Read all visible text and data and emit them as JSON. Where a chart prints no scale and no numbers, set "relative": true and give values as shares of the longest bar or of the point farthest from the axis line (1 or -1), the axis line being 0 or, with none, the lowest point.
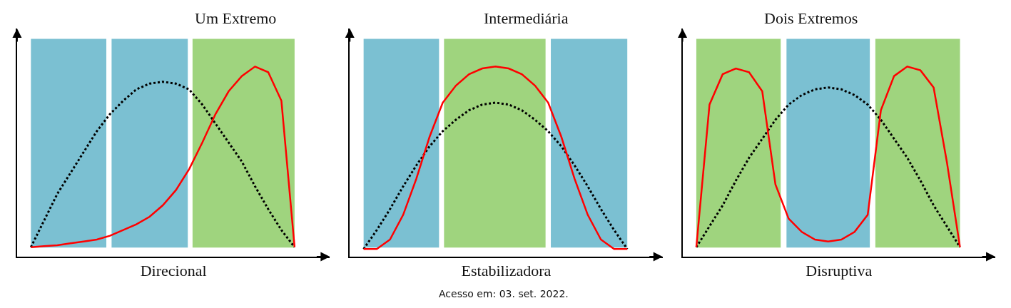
{
  "chart_data": [
    {
      "type": "line",
      "title": "Um Extremo",
      "xlabel": "Direcional",
      "relative": true,
      "categories": [
        null,
        null,
        null,
        null,
        null,
        null,
        null,
        null,
        null,
        null,
        null,
        null,
        null,
        null,
        null,
        null,
        null,
        null,
        null,
        null,
        null
      ],
      "series": [
        {
          "color": "#000000",
          "line_style": "dotted",
          "values": [
            0.05,
            0.19,
            0.33,
            0.44,
            0.55,
            0.66,
            0.75,
            0.82,
            0.88,
            0.91,
            0.92,
            0.91,
            0.88,
            0.8,
            0.7,
            0.6,
            0.5,
            0.37,
            0.25,
            0.14,
            0.05
          ]
        },
        {
          "color": "#ff0000",
          "line_style": "solid",
          "values": [
            0.05,
            0.055,
            0.06,
            0.07,
            0.08,
            0.09,
            0.11,
            0.14,
            0.17,
            0.21,
            0.27,
            0.35,
            0.46,
            0.6,
            0.75,
            0.87,
            0.95,
            1.0,
            0.97,
            0.82,
            0.05
          ]
        }
      ]
    },
    {
      "type": "line",
      "title": "Intermediária",
      "xlabel": "Estabilizadora",
      "relative": true,
      "categories": [
        null,
        null,
        null,
        null,
        null,
        null,
        null,
        null,
        null,
        null,
        null,
        null,
        null,
        null,
        null,
        null,
        null,
        null,
        null,
        null,
        null
      ],
      "annotations": [
        "Acesso em: 03. set. 2022."
      ],
      "series": [
        {
          "color": "#000000",
          "line_style": "dotted",
          "values": [
            0.04,
            0.14,
            0.25,
            0.37,
            0.48,
            0.58,
            0.66,
            0.72,
            0.77,
            0.8,
            0.81,
            0.8,
            0.77,
            0.72,
            0.66,
            0.58,
            0.48,
            0.37,
            0.25,
            0.14,
            0.04
          ]
        },
        {
          "color": "#ff0000",
          "line_style": "solid",
          "values": [
            0.04,
            0.04,
            0.09,
            0.22,
            0.41,
            0.63,
            0.81,
            0.9,
            0.96,
            0.99,
            1.0,
            0.99,
            0.96,
            0.9,
            0.81,
            0.63,
            0.41,
            0.22,
            0.09,
            0.04,
            0.04
          ]
        }
      ]
    },
    {
      "type": "line",
      "title": "Dois Extremos",
      "xlabel": "Disruptiva",
      "relative": true,
      "categories": [
        null,
        null,
        null,
        null,
        null,
        null,
        null,
        null,
        null,
        null,
        null,
        null,
        null,
        null,
        null,
        null,
        null,
        null,
        null,
        null,
        null
      ],
      "series": [
        {
          "color": "#000000",
          "line_style": "dotted",
          "values": [
            0.05,
            0.16,
            0.27,
            0.4,
            0.52,
            0.62,
            0.72,
            0.8,
            0.85,
            0.88,
            0.89,
            0.88,
            0.85,
            0.8,
            0.72,
            0.62,
            0.52,
            0.4,
            0.27,
            0.16,
            0.05
          ]
        },
        {
          "color": "#ff0000",
          "line_style": "solid",
          "values": [
            0.05,
            0.8,
            0.96,
            0.99,
            0.97,
            0.87,
            0.38,
            0.2,
            0.13,
            0.09,
            0.08,
            0.09,
            0.13,
            0.22,
            0.77,
            0.95,
            1.0,
            0.98,
            0.89,
            0.5,
            0.05
          ]
        }
      ]
    }
  ]
}
